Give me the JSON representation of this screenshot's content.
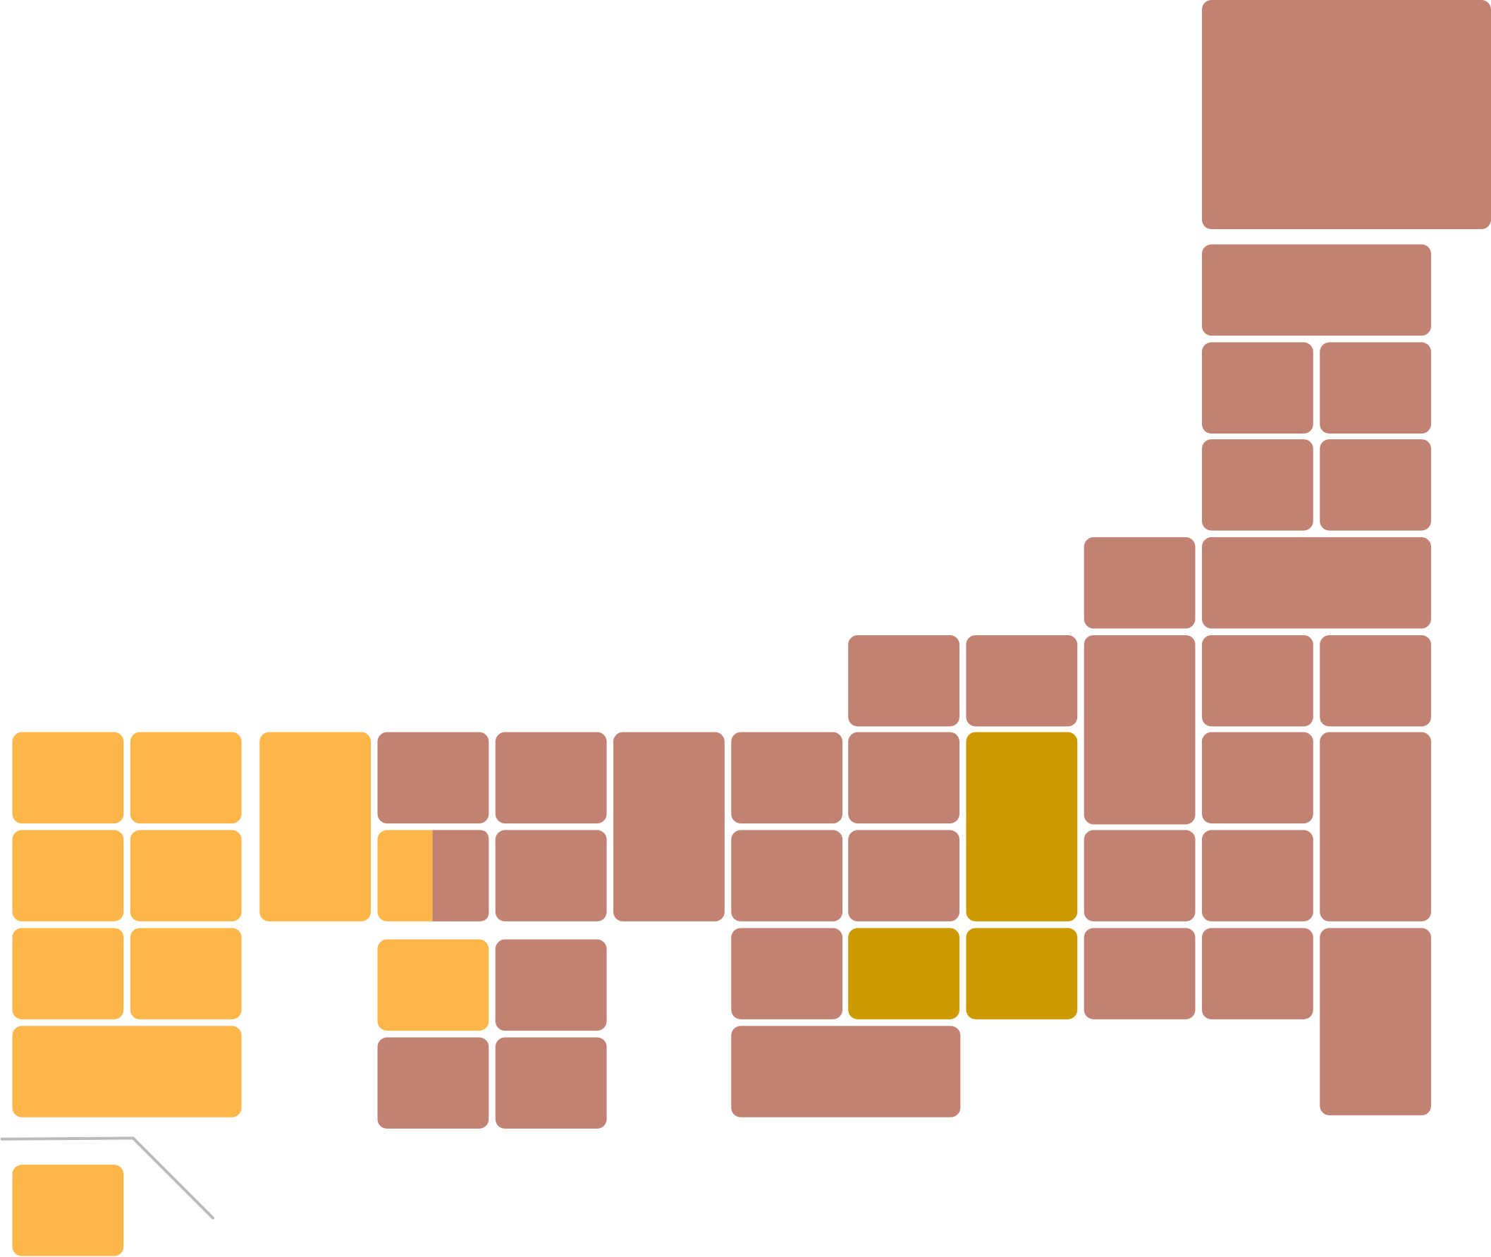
{
  "palette": [
    "#c18274",
    "#fcb64a",
    "#cc9900"
  ]
}
